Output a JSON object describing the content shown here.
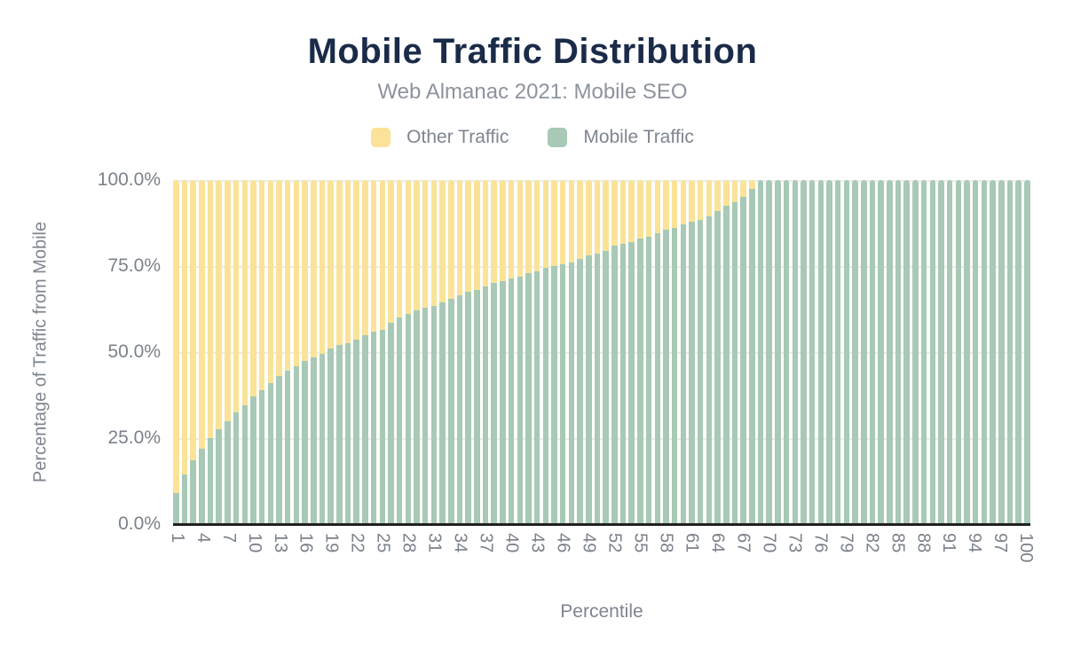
{
  "title": "Mobile Traffic Distribution",
  "subtitle": "Web Almanac 2021: Mobile SEO",
  "legend": {
    "items": [
      {
        "label": "Other Traffic",
        "color": "#fae398"
      },
      {
        "label": "Mobile Traffic",
        "color": "#a7c9b5"
      }
    ]
  },
  "axes": {
    "y": {
      "title": "Percentage of Traffic from Mobile",
      "tick_labels": [
        "100.0%",
        "75.0%",
        "50.0%",
        "25.0%",
        "0.0%"
      ],
      "range": [
        0,
        100
      ]
    },
    "x": {
      "title": "Percentile",
      "tick_values": [
        1,
        4,
        7,
        10,
        13,
        16,
        19,
        22,
        25,
        28,
        31,
        34,
        37,
        40,
        43,
        46,
        49,
        52,
        55,
        58,
        61,
        64,
        67,
        70,
        73,
        76,
        79,
        82,
        85,
        88,
        91,
        94,
        97,
        100
      ]
    }
  },
  "colors": {
    "title": "#1a2b49",
    "subtitle": "#8d939c",
    "axis_text": "#7b818a",
    "gridline": "#ececec",
    "axis_line": "#212121",
    "other_traffic": "#fae398",
    "mobile_traffic": "#a7c9b5",
    "background": "#ffffff"
  },
  "chart_data": {
    "type": "bar",
    "stacked": true,
    "stack_total": 100,
    "title": "Mobile Traffic Distribution",
    "subtitle": "Web Almanac 2021: Mobile SEO",
    "xlabel": "Percentile",
    "ylabel": "Percentage of Traffic from Mobile",
    "ylim": [
      0,
      100
    ],
    "grid": true,
    "legend_position": "top",
    "x": [
      1,
      2,
      3,
      4,
      5,
      6,
      7,
      8,
      9,
      10,
      11,
      12,
      13,
      14,
      15,
      16,
      17,
      18,
      19,
      20,
      21,
      22,
      23,
      24,
      25,
      26,
      27,
      28,
      29,
      30,
      31,
      32,
      33,
      34,
      35,
      36,
      37,
      38,
      39,
      40,
      41,
      42,
      43,
      44,
      45,
      46,
      47,
      48,
      49,
      50,
      51,
      52,
      53,
      54,
      55,
      56,
      57,
      58,
      59,
      60,
      61,
      62,
      63,
      64,
      65,
      66,
      67,
      68,
      69,
      70,
      71,
      72,
      73,
      74,
      75,
      76,
      77,
      78,
      79,
      80,
      81,
      82,
      83,
      84,
      85,
      86,
      87,
      88,
      89,
      90,
      91,
      92,
      93,
      94,
      95,
      96,
      97,
      98,
      99,
      100
    ],
    "series": [
      {
        "name": "Mobile Traffic",
        "color": "#a7c9b5",
        "values": [
          9,
          14.5,
          18.5,
          22,
          25,
          27.5,
          30,
          32.5,
          34.5,
          37,
          39,
          41,
          43,
          44.5,
          46,
          47.5,
          48.5,
          49.5,
          51,
          52,
          52.5,
          53.5,
          55,
          56,
          56.5,
          58.5,
          60,
          61,
          62,
          63,
          63.5,
          64.5,
          65.5,
          66.5,
          67.5,
          68,
          69,
          70,
          70.5,
          71.5,
          72,
          73,
          73.5,
          74.5,
          75,
          75.5,
          76,
          77,
          78,
          78.5,
          79.5,
          81,
          81.5,
          82,
          83,
          83.5,
          84.5,
          85.5,
          86,
          87,
          88,
          88.5,
          89.5,
          91,
          92.5,
          93.5,
          95,
          97.5,
          100,
          100,
          100,
          100,
          100,
          100,
          100,
          100,
          100,
          100,
          100,
          100,
          100,
          100,
          100,
          100,
          100,
          100,
          100,
          100,
          100,
          100,
          100,
          100,
          100,
          100,
          100,
          100,
          100,
          100,
          100,
          100
        ]
      },
      {
        "name": "Other Traffic",
        "color": "#fae398",
        "values": [
          91,
          85.5,
          81.5,
          78,
          75,
          72.5,
          70,
          67.5,
          65.5,
          63,
          61,
          59,
          57,
          55.5,
          54,
          52.5,
          51.5,
          50.5,
          49,
          48,
          47.5,
          46.5,
          45,
          44,
          43.5,
          41.5,
          40,
          39,
          38,
          37,
          36.5,
          35.5,
          34.5,
          33.5,
          32.5,
          32,
          31,
          30,
          29.5,
          28.5,
          28,
          27,
          26.5,
          25.5,
          25,
          24.5,
          24,
          23,
          22,
          21.5,
          20.5,
          19,
          18.5,
          18,
          17,
          16.5,
          15.5,
          14.5,
          14,
          13,
          12,
          11.5,
          10.5,
          9,
          7.5,
          6.5,
          5,
          2.5,
          0,
          0,
          0,
          0,
          0,
          0,
          0,
          0,
          0,
          0,
          0,
          0,
          0,
          0,
          0,
          0,
          0,
          0,
          0,
          0,
          0,
          0,
          0,
          0,
          0,
          0,
          0,
          0,
          0,
          0,
          0,
          0
        ]
      }
    ]
  }
}
